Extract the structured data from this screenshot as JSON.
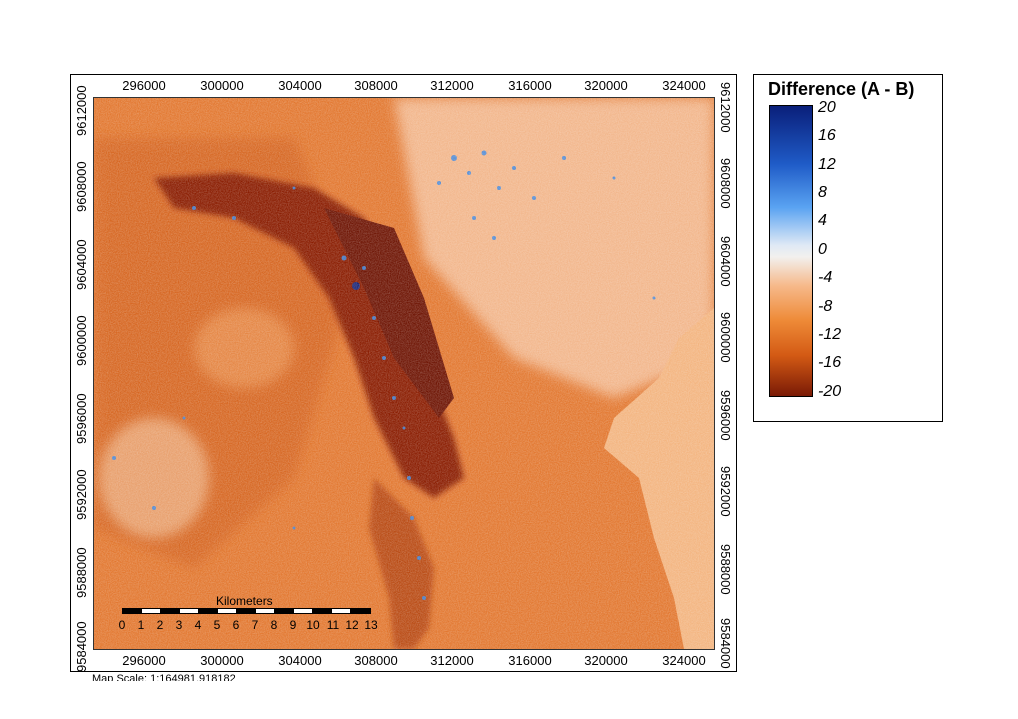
{
  "map": {
    "legend_title": "Difference (A - B)",
    "legend_labels": [
      "20",
      "16",
      "12",
      "8",
      "4",
      "0",
      "-4",
      "-8",
      "-12",
      "-16",
      "-20"
    ],
    "x_ticks": [
      "296000",
      "300000",
      "304000",
      "308000",
      "312000",
      "316000",
      "320000",
      "324000"
    ],
    "y_ticks": [
      "9612000",
      "9608000",
      "9604000",
      "9600000",
      "9596000",
      "9592000",
      "9588000",
      "9584000"
    ],
    "scalebar_title": "Kilometers",
    "scalebar_labels": [
      "0",
      "1",
      "2",
      "3",
      "4",
      "5",
      "6",
      "7",
      "8",
      "9",
      "10",
      "11",
      "12",
      "13"
    ],
    "map_scale_text": "Map Scale: 1:164981.918182",
    "colors": {
      "max": "#0a1f7a",
      "mid": "#f2f0ee",
      "min": "#7a1a06",
      "nodata_fill": "#f3b47f"
    }
  }
}
